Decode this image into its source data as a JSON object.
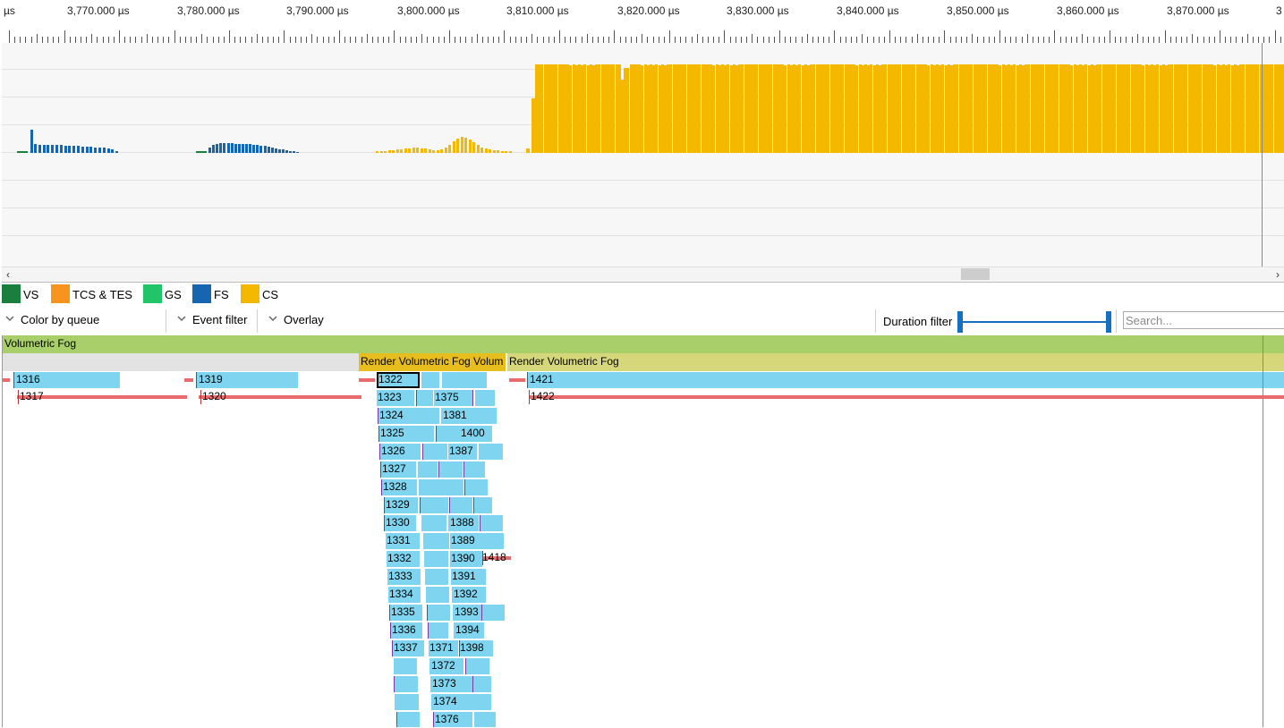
{
  "ruler": {
    "labels": [
      {
        "text": "µs"
      },
      {
        "text": "3,770.000 µs"
      },
      {
        "text": "3,780.000 µs"
      },
      {
        "text": "3,790.000 µs"
      },
      {
        "text": "3,800.000 µs"
      },
      {
        "text": "3,810.000 µs"
      },
      {
        "text": "3,820.000 µs"
      },
      {
        "text": "3,830.000 µs"
      },
      {
        "text": "3,840.000 µs"
      },
      {
        "text": "3,850.000 µs"
      },
      {
        "text": "3,860.000 µs"
      },
      {
        "text": "3,870.000 µs"
      },
      {
        "text": "3"
      }
    ]
  },
  "legend": [
    {
      "label": "VS",
      "color": "#1a7f3c"
    },
    {
      "label": "TCS & TES",
      "color": "#f7941d"
    },
    {
      "label": "GS",
      "color": "#22c46a"
    },
    {
      "label": "FS",
      "color": "#1565b0"
    },
    {
      "label": "CS",
      "color": "#f5b800"
    }
  ],
  "toolbar": {
    "color_by_queue": "Color by queue",
    "event_filter": "Event filter",
    "overlay": "Overlay",
    "duration_filter": "Duration filter",
    "search_placeholder": "Search..."
  },
  "regions": {
    "root": "Volumetric Fog",
    "render1": "Render Volumetric Fog Volum",
    "render2": "Render Volumetric Fog"
  },
  "events": {
    "e1316": "1316",
    "e1317": "1317",
    "e1319": "1319",
    "e1320": "1320",
    "e1322": "1322",
    "e1323": "1323",
    "e1324": "1324",
    "e1325": "1325",
    "e1326": "1326",
    "e1327": "1327",
    "e1328": "1328",
    "e1329": "1329",
    "e1330": "1330",
    "e1331": "1331",
    "e1332": "1332",
    "e1333": "1333",
    "e1334": "1334",
    "e1335": "1335",
    "e1336": "1336",
    "e1337": "1337",
    "e1371": "1371",
    "e1372": "1372",
    "e1373": "1373",
    "e1374": "1374",
    "e1375": "1375",
    "e1376": "1376",
    "e1381": "1381",
    "e1387": "1387",
    "e1388": "1388",
    "e1389": "1389",
    "e1390": "1390",
    "e1391": "1391",
    "e1392": "1392",
    "e1393": "1393",
    "e1394": "1394",
    "e1398": "1398",
    "e1400": "1400",
    "e1418": "1418",
    "e1421": "1421",
    "e1422": "1422"
  }
}
